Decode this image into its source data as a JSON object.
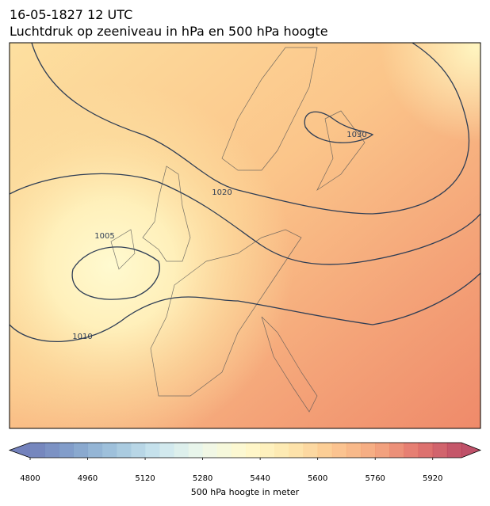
{
  "header": {
    "datetime": "16-05-1827 12 UTC",
    "title": "Luchtdruk op zeeniveau in hPa en 500 hPa hoogte"
  },
  "map": {
    "isobar_labels": [
      1005,
      1010,
      1020,
      1030
    ]
  },
  "colorbar": {
    "label": "500 hPa hoogte in meter",
    "lim": [
      4800,
      6000
    ],
    "ticks": [
      4800,
      4960,
      5120,
      5280,
      5440,
      5600,
      5760,
      5920
    ]
  }
}
